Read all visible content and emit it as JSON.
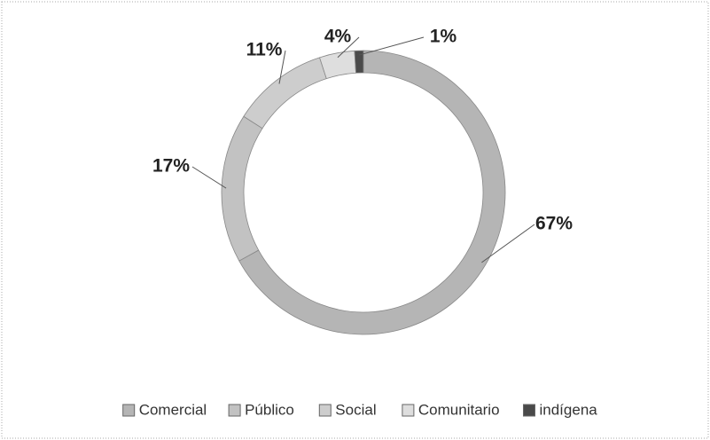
{
  "chart_data": {
    "type": "donut",
    "categories": [
      "Comercial",
      "Público",
      "Social",
      "Comunitario",
      "indígena"
    ],
    "values": [
      67,
      17,
      11,
      4,
      1
    ],
    "value_labels": [
      "67%",
      "17%",
      "11%",
      "4%",
      "1%"
    ],
    "colors": [
      "#b5b5b5",
      "#c2c2c2",
      "#cdcdcd",
      "#dedede",
      "#4a4a4a"
    ],
    "legend": "bottom"
  }
}
